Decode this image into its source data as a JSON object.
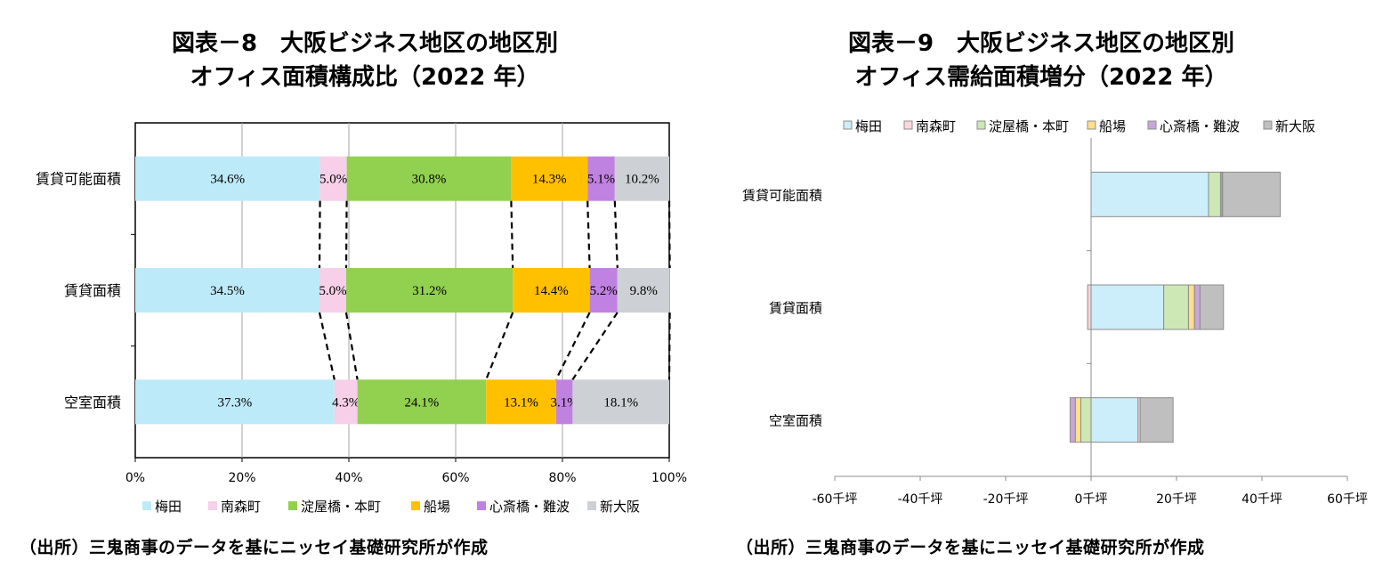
{
  "chart_data": [
    {
      "type": "bar",
      "orientation": "horizontal",
      "stacked": "percent",
      "title_line1": "図表－8　大阪ビジネス地区の地区別",
      "title_line2": "オフィス面積構成比（2022 年）",
      "categories": [
        "賃貸可能面積",
        "賃貸面積",
        "空室面積"
      ],
      "series": [
        {
          "name": "梅田",
          "values": [
            34.6,
            34.5,
            37.3
          ],
          "labels": [
            "34.6%",
            "34.5%",
            "37.3%"
          ],
          "color": "#bdeaf8"
        },
        {
          "name": "南森町",
          "values": [
            5.0,
            5.0,
            4.3
          ],
          "labels": [
            "5.0%",
            "5.0%",
            "4.3%"
          ],
          "color": "#f7cfe8"
        },
        {
          "name": "淀屋橋・本町",
          "values": [
            30.8,
            31.2,
            24.1
          ],
          "labels": [
            "30.8%",
            "31.2%",
            "24.1%"
          ],
          "color": "#92d050"
        },
        {
          "name": "船場",
          "values": [
            14.3,
            14.4,
            13.1
          ],
          "labels": [
            "14.3%",
            "14.4%",
            "13.1%"
          ],
          "color": "#ffc000"
        },
        {
          "name": "心斎橋・難波",
          "values": [
            5.1,
            5.2,
            3.1
          ],
          "labels": [
            "5.1%",
            "5.2%",
            "3.1%"
          ],
          "color": "#c082e0"
        },
        {
          "name": "新大阪",
          "values": [
            10.2,
            9.8,
            18.1
          ],
          "labels": [
            "10.2%",
            "9.8%",
            "18.1%"
          ],
          "color": "#cdd0d4"
        }
      ],
      "xlim": [
        0,
        100
      ],
      "x_ticks": [
        "0%",
        "20%",
        "40%",
        "60%",
        "80%",
        "100%"
      ],
      "grid": "vertical",
      "connector_lines": "dashed",
      "legend_position": "bottom",
      "source": "（出所）三鬼商事のデータを基にニッセイ基礎研究所が作成"
    },
    {
      "type": "bar",
      "orientation": "horizontal",
      "stacked": true,
      "title_line1": "図表－9　大阪ビジネス地区の地区別",
      "title_line2": "オフィス需給面積増分（2022 年）",
      "unit": "千坪",
      "categories": [
        "賃貸可能面積",
        "賃貸面積",
        "空室面積"
      ],
      "series": [
        {
          "name": "梅田",
          "values": [
            27.5,
            17.0,
            11.0
          ],
          "color": "#ccedfa"
        },
        {
          "name": "南森町",
          "values": [
            0.0,
            -0.8,
            0.5
          ],
          "color": "#f9d7dc"
        },
        {
          "name": "淀屋橋・本町",
          "values": [
            2.8,
            5.8,
            -2.4
          ],
          "color": "#cde8b4"
        },
        {
          "name": "船場",
          "values": [
            0.3,
            1.4,
            -1.3
          ],
          "color": "#ffdf8a"
        },
        {
          "name": "心斎橋・難波",
          "values": [
            0.2,
            1.3,
            -1.2
          ],
          "color": "#c7a7d9"
        },
        {
          "name": "新大阪",
          "values": [
            13.5,
            5.5,
            7.7
          ],
          "color": "#bfbfbf"
        }
      ],
      "xlim": [
        -60,
        60
      ],
      "x_ticks": [
        "-60千坪",
        "-40千坪",
        "-20千坪",
        "0千坪",
        "20千坪",
        "40千坪",
        "60千坪"
      ],
      "grid": false,
      "legend_position": "top",
      "source": "（出所）三鬼商事のデータを基にニッセイ基礎研究所が作成"
    }
  ]
}
